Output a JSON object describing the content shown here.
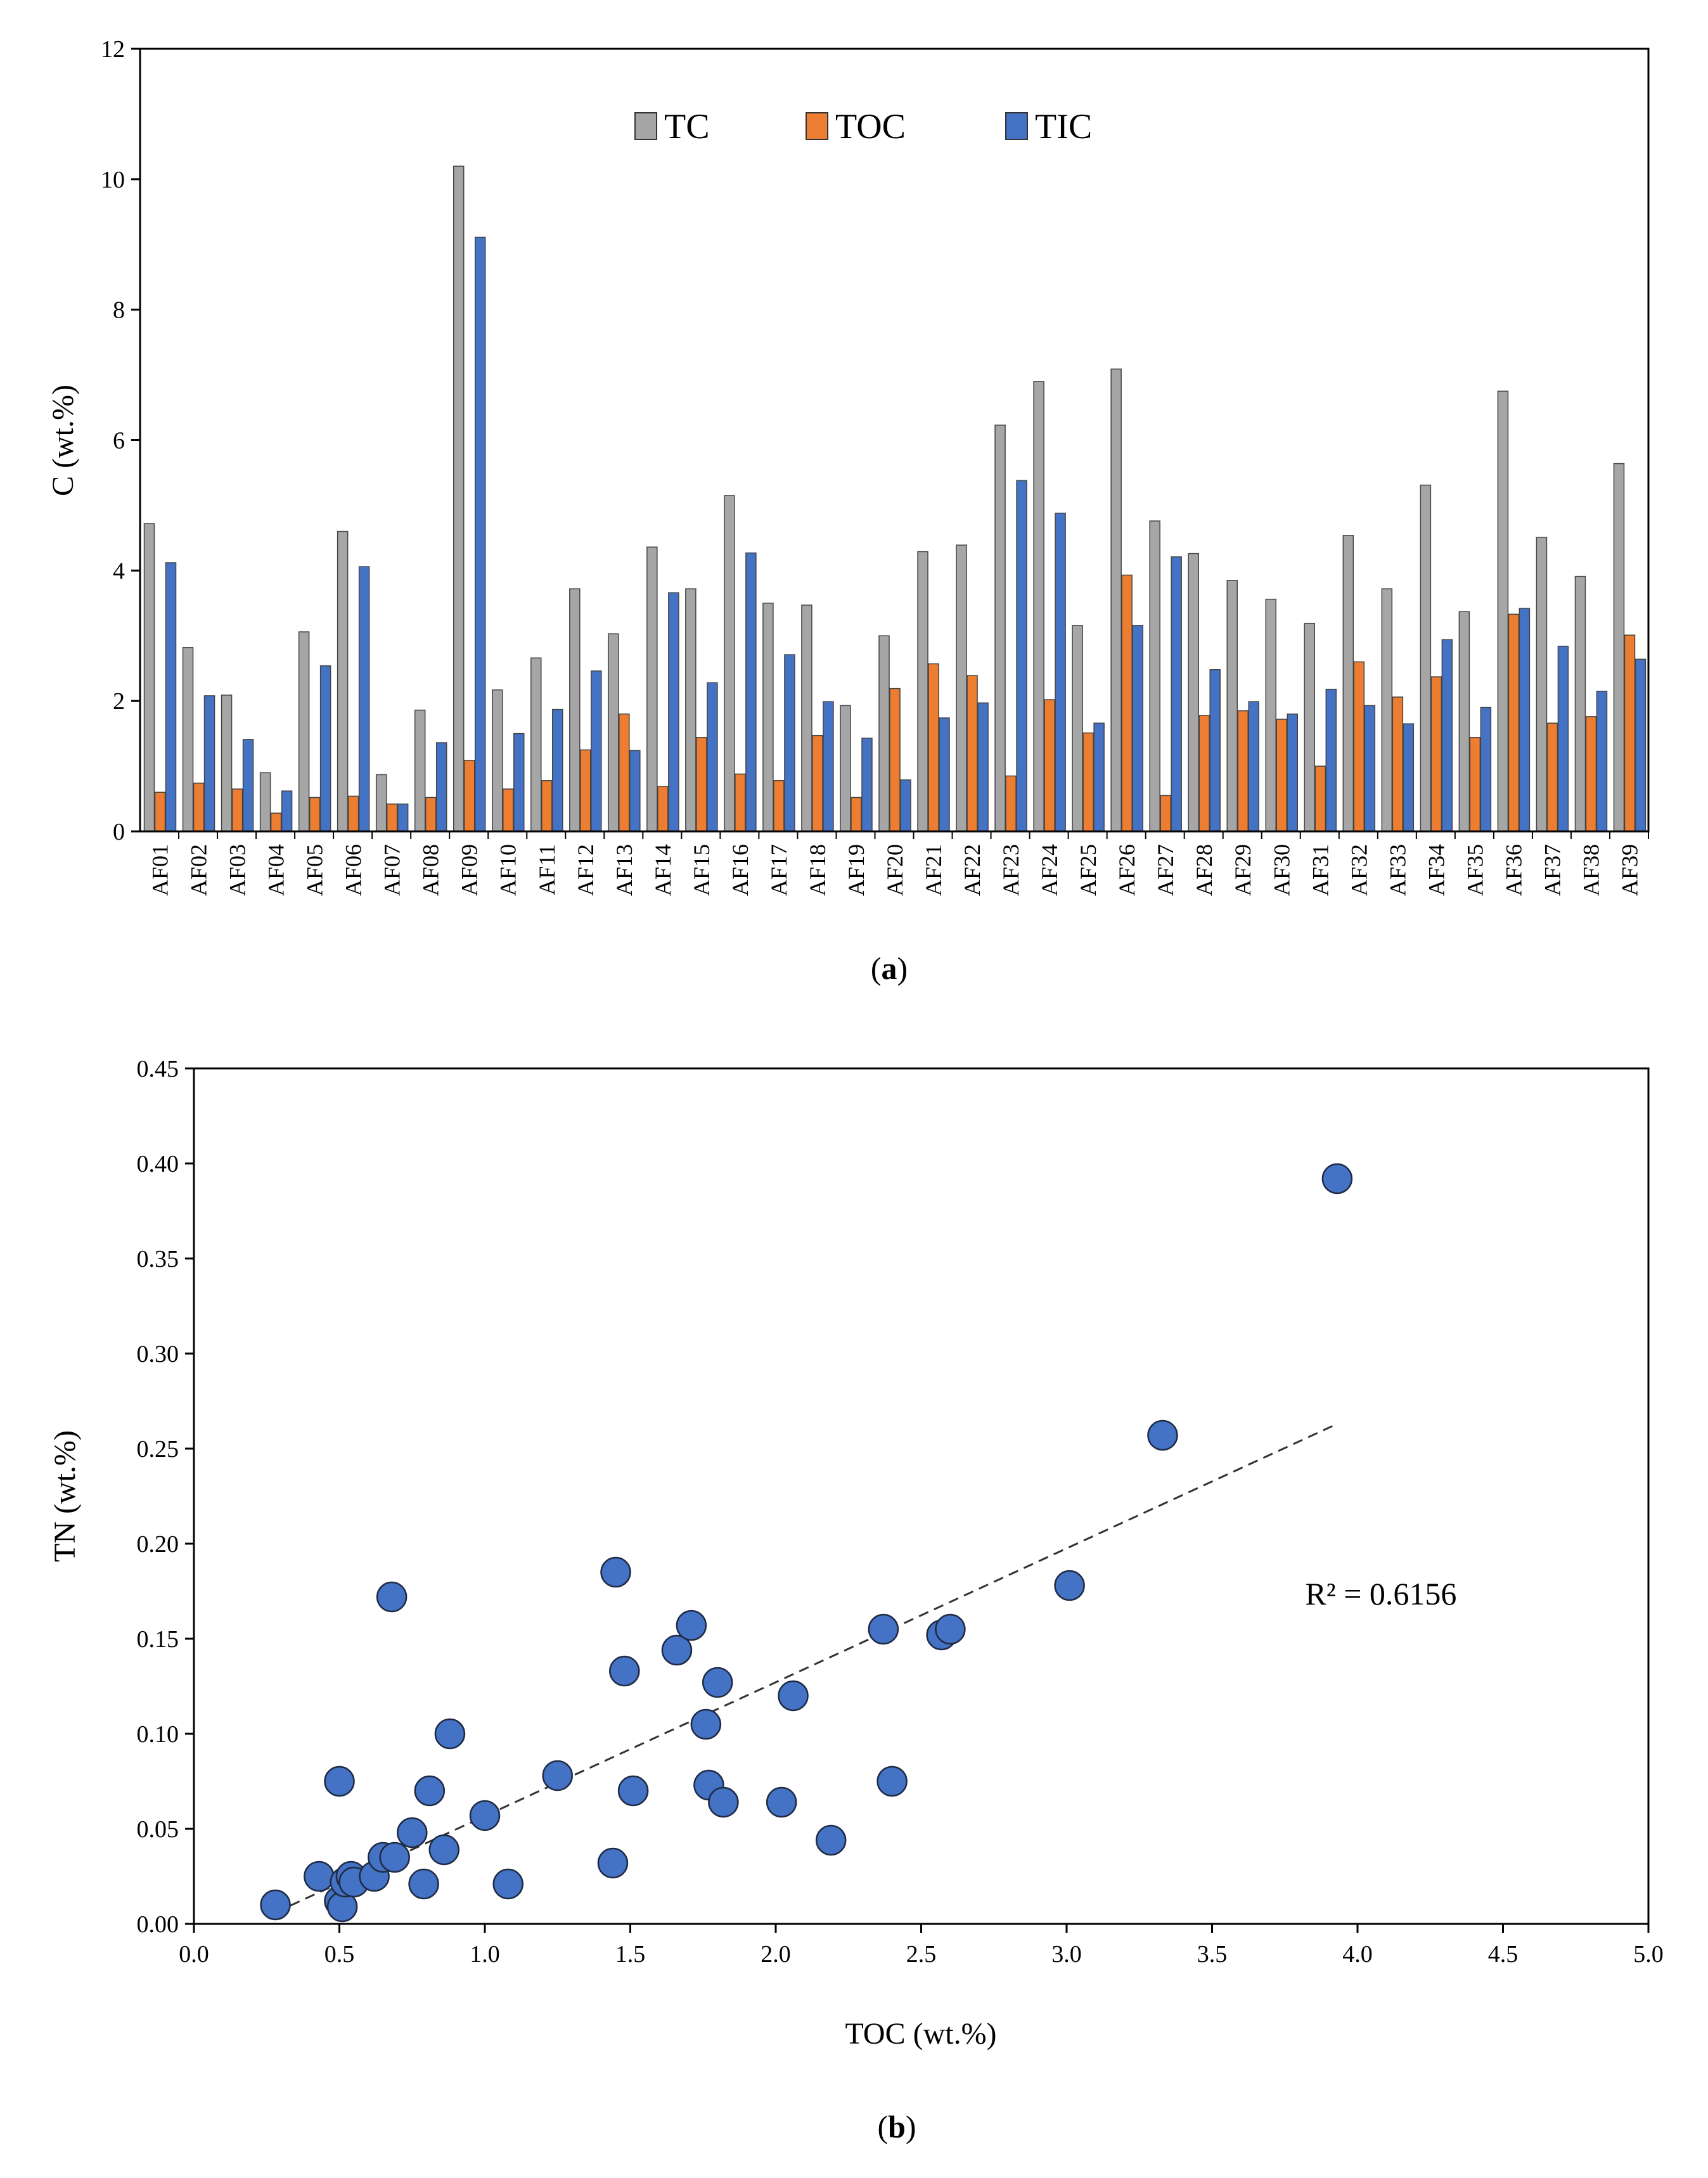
{
  "chart_data": [
    {
      "type": "bar",
      "panel_label": {
        "open": "(",
        "letter": "a",
        "close": ")"
      },
      "title": "",
      "xlabel": "",
      "ylabel": "C (wt.%)",
      "ylim": [
        0,
        12
      ],
      "yticks": [
        0,
        2,
        4,
        6,
        8,
        10,
        12
      ],
      "legend_position": "top-center",
      "categories": [
        "AF01",
        "AF02",
        "AF03",
        "AF04",
        "AF05",
        "AF06",
        "AF07",
        "AF08",
        "AF09",
        "AF10",
        "AF11",
        "AF12",
        "AF13",
        "AF14",
        "AF15",
        "AF16",
        "AF17",
        "AF18",
        "AF19",
        "AF20",
        "AF21",
        "AF22",
        "AF23",
        "AF24",
        "AF25",
        "AF26",
        "AF27",
        "AF28",
        "AF29",
        "AF30",
        "AF31",
        "AF32",
        "AF33",
        "AF34",
        "AF35",
        "AF36",
        "AF37",
        "AF38",
        "AF39"
      ],
      "series": [
        {
          "name": "TC",
          "color": "#a6a6a6",
          "values": [
            4.72,
            2.82,
            2.09,
            0.9,
            3.06,
            4.6,
            0.87,
            1.86,
            10.2,
            2.17,
            2.66,
            3.72,
            3.03,
            4.36,
            3.72,
            5.15,
            3.5,
            3.47,
            1.93,
            3.0,
            4.29,
            4.39,
            6.23,
            6.9,
            3.16,
            7.09,
            4.76,
            4.26,
            3.85,
            3.56,
            3.19,
            4.54,
            3.72,
            5.31,
            3.37,
            6.75,
            4.51,
            3.91,
            5.64
          ]
        },
        {
          "name": "TOC",
          "color": "#ed7d31",
          "values": [
            0.6,
            0.74,
            0.65,
            0.28,
            0.52,
            0.54,
            0.42,
            0.52,
            1.09,
            0.65,
            0.78,
            1.25,
            1.8,
            0.69,
            1.44,
            0.88,
            0.78,
            1.47,
            0.52,
            2.19,
            2.57,
            2.39,
            0.85,
            2.02,
            1.51,
            3.93,
            0.55,
            1.78,
            1.85,
            1.72,
            1.0,
            2.6,
            2.06,
            2.37,
            1.44,
            3.33,
            1.66,
            1.76,
            3.01
          ]
        },
        {
          "name": "TIC",
          "color": "#4472c4",
          "values": [
            4.12,
            2.08,
            1.41,
            0.62,
            2.54,
            4.06,
            0.42,
            1.36,
            9.11,
            1.5,
            1.87,
            2.46,
            1.24,
            3.66,
            2.28,
            4.27,
            2.71,
            1.99,
            1.43,
            0.79,
            1.74,
            1.97,
            5.38,
            4.88,
            1.66,
            3.16,
            4.21,
            2.48,
            1.99,
            1.8,
            2.18,
            1.93,
            1.65,
            2.94,
            1.9,
            3.42,
            2.84,
            2.15,
            2.64
          ]
        }
      ]
    },
    {
      "type": "scatter",
      "panel_label": {
        "open": "(",
        "letter": "b",
        "close": ")"
      },
      "title": "",
      "xlabel": "TOC (wt.%)",
      "ylabel": "TN (wt.%)",
      "xlim": [
        0,
        5
      ],
      "ylim": [
        0,
        0.45
      ],
      "xticks": [
        "0.0",
        "0.5",
        "1.0",
        "1.5",
        "2.0",
        "2.5",
        "3.0",
        "3.5",
        "4.0",
        "4.5",
        "5.0"
      ],
      "yticks": [
        "0.00",
        "0.05",
        "0.10",
        "0.15",
        "0.20",
        "0.25",
        "0.30",
        "0.35",
        "0.40",
        "0.45"
      ],
      "marker_color": "#4472c4",
      "points": [
        [
          0.28,
          0.01
        ],
        [
          0.43,
          0.025
        ],
        [
          0.5,
          0.075
        ],
        [
          0.5,
          0.012
        ],
        [
          0.51,
          0.009
        ],
        [
          0.52,
          0.022
        ],
        [
          0.54,
          0.025
        ],
        [
          0.55,
          0.022
        ],
        [
          0.62,
          0.025
        ],
        [
          0.65,
          0.035
        ],
        [
          0.68,
          0.172
        ],
        [
          0.69,
          0.035
        ],
        [
          0.75,
          0.048
        ],
        [
          0.79,
          0.021
        ],
        [
          0.81,
          0.07
        ],
        [
          0.86,
          0.039
        ],
        [
          0.88,
          0.1
        ],
        [
          1.0,
          0.057
        ],
        [
          1.08,
          0.021
        ],
        [
          1.25,
          0.078
        ],
        [
          1.44,
          0.032
        ],
        [
          1.45,
          0.185
        ],
        [
          1.48,
          0.133
        ],
        [
          1.51,
          0.07
        ],
        [
          1.66,
          0.144
        ],
        [
          1.71,
          0.157
        ],
        [
          1.76,
          0.105
        ],
        [
          1.77,
          0.073
        ],
        [
          1.8,
          0.127
        ],
        [
          1.82,
          0.064
        ],
        [
          2.02,
          0.064
        ],
        [
          2.06,
          0.12
        ],
        [
          2.19,
          0.044
        ],
        [
          2.37,
          0.155
        ],
        [
          2.4,
          0.075
        ],
        [
          2.57,
          0.152
        ],
        [
          2.6,
          0.155
        ],
        [
          3.01,
          0.178
        ],
        [
          3.33,
          0.257
        ],
        [
          3.93,
          0.392
        ]
      ],
      "trendline": {
        "style": "dashed",
        "x": [
          0.28,
          3.93
        ],
        "y": [
          0.006,
          0.263
        ]
      },
      "annotation": "R² = 0.6156",
      "annotation_at": [
        3.82,
        0.178
      ]
    }
  ]
}
